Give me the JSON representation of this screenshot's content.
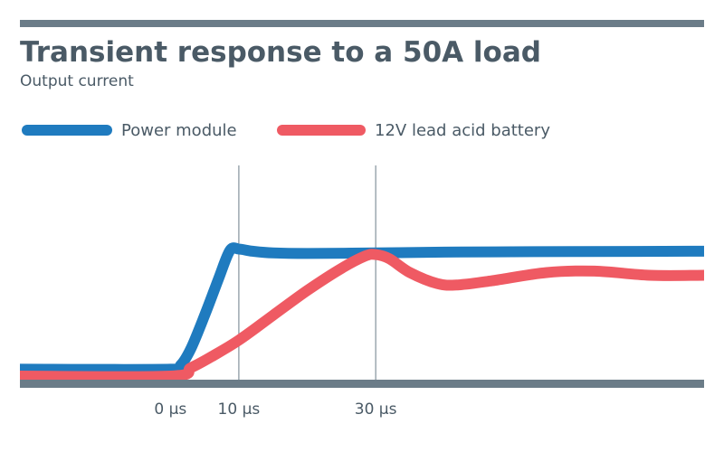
{
  "chart_data": {
    "type": "line",
    "title": "Transient response to a 50A load",
    "subtitle": "Output current",
    "xlabel": "",
    "ylabel": "",
    "x_unit": "µs",
    "x_ticks": [
      {
        "value": 0,
        "label": "0 µs"
      },
      {
        "value": 10,
        "label": "10 µs"
      },
      {
        "value": 30,
        "label": "30 µs"
      }
    ],
    "xlim": [
      -22,
      78
    ],
    "ylim": [
      0,
      55
    ],
    "grid": "vertical lines at 10 µs and 30 µs",
    "legend_position": "top-left",
    "series": [
      {
        "name": "Power module",
        "color": "#1f7bbf",
        "points": [
          [
            -22,
            2.5
          ],
          [
            0,
            2.5
          ],
          [
            1.5,
            4
          ],
          [
            3,
            10
          ],
          [
            5,
            22
          ],
          [
            7,
            35
          ],
          [
            8.7,
            45.5
          ],
          [
            10,
            46
          ],
          [
            12,
            45.2
          ],
          [
            15,
            44.6
          ],
          [
            20,
            44.4
          ],
          [
            30,
            44.6
          ],
          [
            40,
            44.9
          ],
          [
            50,
            45.0
          ],
          [
            60,
            45.1
          ],
          [
            78,
            45.2
          ]
        ]
      },
      {
        "name": "12V lead acid battery",
        "color": "#ef5a63",
        "points": [
          [
            -22,
            0
          ],
          [
            0,
            0
          ],
          [
            3,
            3
          ],
          [
            6,
            7
          ],
          [
            10,
            13
          ],
          [
            15,
            22
          ],
          [
            20,
            31
          ],
          [
            25,
            39
          ],
          [
            28.5,
            43.5
          ],
          [
            30,
            44
          ],
          [
            32,
            42.5
          ],
          [
            35,
            37.5
          ],
          [
            39,
            33.5
          ],
          [
            42,
            33
          ],
          [
            47,
            34.5
          ],
          [
            55,
            37.5
          ],
          [
            62,
            38
          ],
          [
            70,
            36.5
          ],
          [
            78,
            36.5
          ]
        ]
      }
    ],
    "colors": {
      "axis": "#6b7c88",
      "text": "#4a5a66"
    }
  }
}
